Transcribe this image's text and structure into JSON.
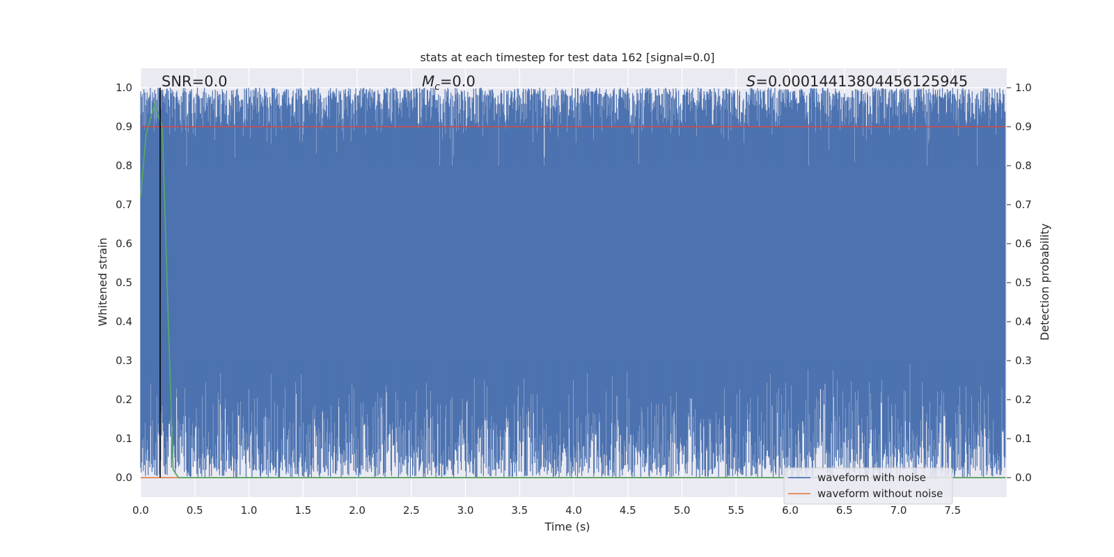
{
  "chart_data": {
    "type": "line",
    "title": "stats at each timestep for test data 162 [signal=0.0]",
    "xlabel": "Time (s)",
    "ylabel": "Whitened strain",
    "ylabel_right": "Detection probability",
    "xlim": [
      0.0,
      8.0
    ],
    "ylim": [
      -0.05,
      1.05
    ],
    "ylim_right": [
      -0.05,
      1.05
    ],
    "x_ticks": [
      "0.0",
      "0.5",
      "1.0",
      "1.5",
      "2.0",
      "2.5",
      "3.0",
      "3.5",
      "4.0",
      "4.5",
      "5.0",
      "5.5",
      "6.0",
      "6.5",
      "7.0",
      "7.5"
    ],
    "y_ticks": [
      "0.0",
      "0.1",
      "0.2",
      "0.3",
      "0.4",
      "0.5",
      "0.6",
      "0.7",
      "0.8",
      "0.9",
      "1.0"
    ],
    "y_ticks_right": [
      "0.0",
      "0.1",
      "0.2",
      "0.3",
      "0.4",
      "0.5",
      "0.6",
      "0.7",
      "0.8",
      "0.9",
      "1.0"
    ],
    "grid": true,
    "background": "#eaeaf2",
    "annotations": {
      "snr": "SNR=0.0",
      "mc_symbol": "M",
      "mc_sub": "c",
      "mc_value": "=0.0",
      "s_symbol": "S",
      "s_value": "=0.00014413804456125945"
    },
    "series": [
      {
        "name": "waveform with noise",
        "color": "#4c72b0",
        "description_of_values": "dense noise filling band between lower envelope ~0.0–0.3 and upper envelope ~0.8–1.0",
        "sample_count": 1600,
        "lower_envelope": {
          "mean": 0.05,
          "spread": 0.3
        },
        "upper_envelope": {
          "mean": 0.95,
          "spread": 0.25
        }
      },
      {
        "name": "waveform without noise",
        "color": "#dd8452",
        "x": [
          0.0,
          7.99
        ],
        "values": [
          0.0,
          0.0
        ]
      },
      {
        "name": "",
        "color": "#55a868",
        "x": [
          0.0,
          0.05,
          0.1,
          0.13,
          0.16,
          0.2,
          0.25,
          0.3,
          0.35,
          0.4,
          7.99
        ],
        "values": [
          0.72,
          0.88,
          0.93,
          0.96,
          0.93,
          0.9,
          0.45,
          0.02,
          0.0,
          0.0,
          0.0
        ]
      },
      {
        "name": "",
        "color": "#c44e52",
        "x": [
          0.0,
          7.99
        ],
        "values": [
          0.9,
          0.9
        ]
      }
    ],
    "vertical_line": {
      "x": 0.18,
      "color": "#000000"
    },
    "legend": {
      "placement": "lower-right",
      "entries": [
        "waveform with noise",
        "waveform without noise"
      ]
    }
  }
}
